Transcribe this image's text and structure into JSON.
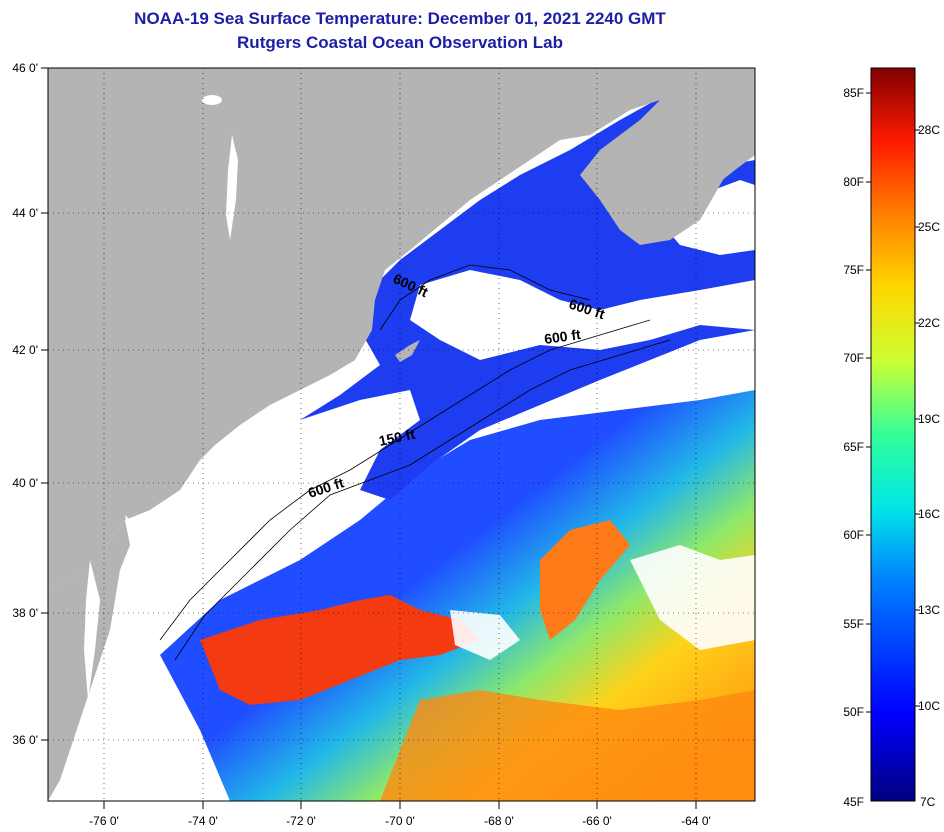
{
  "title": "NOAA-19 Sea Surface Temperature:  December 01, 2021 2240 GMT",
  "subtitle": "Rutgers Coastal Ocean Observation Lab",
  "lat_labels": [
    "46 0'",
    "44 0'",
    "42 0'",
    "40 0'",
    "38 0'",
    "36 0'"
  ],
  "lon_labels": [
    "-76 0'",
    "-74 0'",
    "-72 0'",
    "-70 0'",
    "-68 0'",
    "-66 0'",
    "-64 0'"
  ],
  "depth_labels": [
    "600 ft",
    "600 ft",
    "600 ft",
    "150 ft",
    "600 ft"
  ],
  "colorbar": {
    "fahrenheit": [
      "85F",
      "80F",
      "75F",
      "70F",
      "65F",
      "60F",
      "55F",
      "50F",
      "45F"
    ],
    "celsius": [
      "28C",
      "25C",
      "22C",
      "19C",
      "16C",
      "13C",
      "10C",
      "7C"
    ]
  },
  "colors": {
    "land": "#b4b4b4",
    "cloud": "#ffffff",
    "title": "#1c1fa6"
  }
}
